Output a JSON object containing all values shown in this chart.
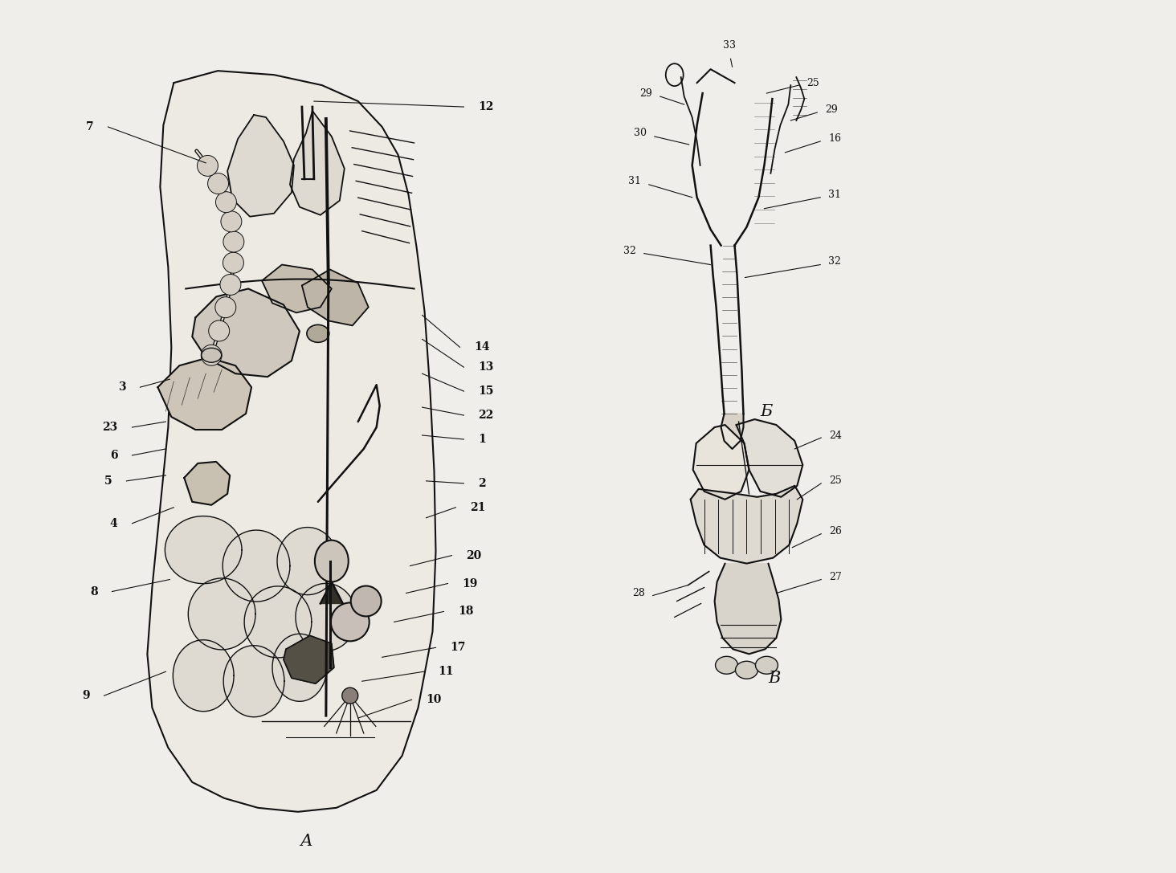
{
  "background_color": "#f0eeea",
  "fig_width": 14.64,
  "fig_height": 10.87,
  "dpi": 100,
  "annotations_A_left": [
    [
      1.15,
      9.3,
      2.55,
      8.85,
      "7"
    ],
    [
      1.55,
      6.05,
      2.1,
      6.15,
      "3"
    ],
    [
      1.45,
      5.55,
      2.05,
      5.62,
      "23"
    ],
    [
      1.45,
      5.2,
      2.05,
      5.28,
      "6"
    ],
    [
      1.38,
      4.88,
      2.05,
      4.95,
      "5"
    ],
    [
      1.45,
      4.35,
      2.15,
      4.55,
      "4"
    ],
    [
      1.2,
      3.5,
      2.1,
      3.65,
      "8"
    ],
    [
      1.1,
      2.2,
      2.05,
      2.5,
      "9"
    ]
  ],
  "annotations_A_right": [
    [
      5.95,
      9.55,
      3.9,
      9.62,
      "12"
    ],
    [
      5.9,
      6.55,
      5.25,
      6.95,
      "14"
    ],
    [
      5.95,
      6.3,
      5.25,
      6.65,
      "13"
    ],
    [
      5.95,
      6.0,
      5.25,
      6.22,
      "15"
    ],
    [
      5.95,
      5.7,
      5.25,
      5.8,
      "22"
    ],
    [
      5.95,
      5.4,
      5.25,
      5.45,
      "1"
    ],
    [
      5.95,
      4.85,
      5.3,
      4.88,
      "2"
    ],
    [
      5.85,
      4.55,
      5.3,
      4.42,
      "21"
    ],
    [
      5.8,
      3.95,
      5.1,
      3.82,
      "20"
    ],
    [
      5.75,
      3.6,
      5.05,
      3.48,
      "19"
    ],
    [
      5.7,
      3.25,
      4.9,
      3.12,
      "18"
    ],
    [
      5.6,
      2.8,
      4.75,
      2.68,
      "17"
    ],
    [
      5.45,
      2.5,
      4.5,
      2.38,
      "11"
    ],
    [
      5.3,
      2.15,
      4.45,
      1.92,
      "10"
    ]
  ],
  "label_A": [
    3.8,
    0.38
  ],
  "label_B": [
    9.55,
    5.75
  ],
  "label_V": [
    9.65,
    2.42
  ]
}
